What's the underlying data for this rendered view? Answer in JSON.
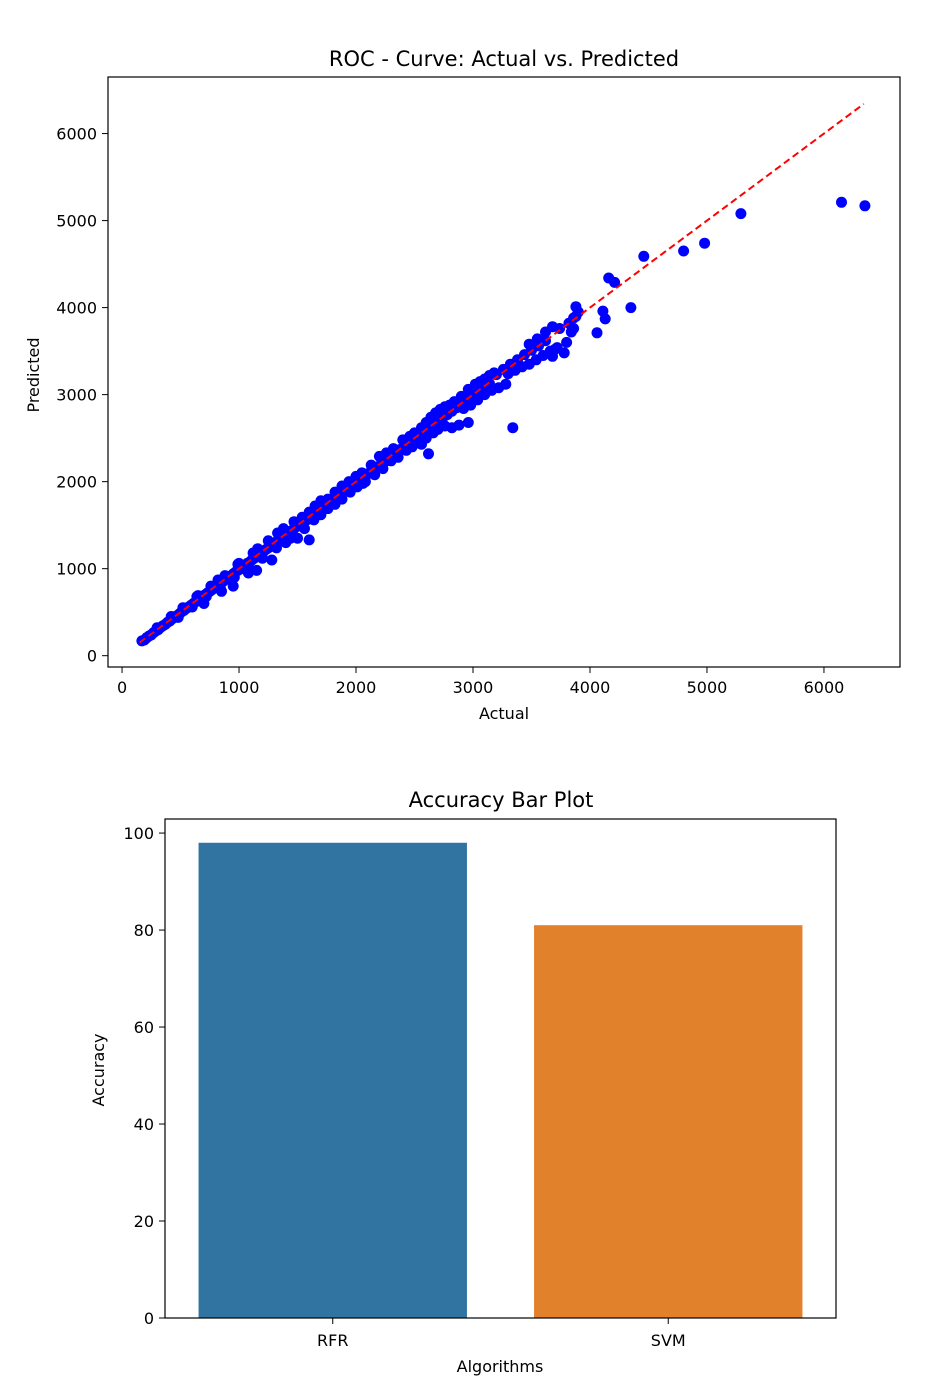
{
  "chart_data": [
    {
      "type": "scatter",
      "title": "ROC - Curve: Actual vs. Predicted",
      "xlabel": "Actual",
      "ylabel": "Predicted",
      "xlim": [
        -120,
        6650
      ],
      "ylim": [
        -130,
        6650
      ],
      "xticks": [
        "0",
        "1000",
        "2000",
        "3000",
        "4000",
        "5000",
        "6000"
      ],
      "yticks": [
        "0",
        "1000",
        "2000",
        "3000",
        "4000",
        "5000",
        "6000"
      ],
      "reference_line": {
        "from": [
          150,
          150
        ],
        "to": [
          6340,
          6340
        ],
        "color": "#ff0000",
        "style": "dashed"
      },
      "point_color": "#0000ff",
      "points": [
        [
          170,
          170
        ],
        [
          190,
          180
        ],
        [
          210,
          205
        ],
        [
          230,
          225
        ],
        [
          250,
          240
        ],
        [
          270,
          265
        ],
        [
          290,
          285
        ],
        [
          310,
          300
        ],
        [
          330,
          325
        ],
        [
          350,
          345
        ],
        [
          370,
          360
        ],
        [
          390,
          385
        ],
        [
          410,
          400
        ],
        [
          430,
          425
        ],
        [
          450,
          440
        ],
        [
          470,
          460
        ],
        [
          490,
          480
        ],
        [
          510,
          505
        ],
        [
          530,
          520
        ],
        [
          550,
          545
        ],
        [
          570,
          560
        ],
        [
          590,
          580
        ],
        [
          610,
          600
        ],
        [
          630,
          620
        ],
        [
          650,
          640
        ],
        [
          670,
          660
        ],
        [
          690,
          680
        ],
        [
          710,
          700
        ],
        [
          730,
          720
        ],
        [
          750,
          740
        ],
        [
          770,
          760
        ],
        [
          790,
          780
        ],
        [
          810,
          800
        ],
        [
          830,
          815
        ],
        [
          850,
          840
        ],
        [
          870,
          860
        ],
        [
          890,
          880
        ],
        [
          910,
          900
        ],
        [
          930,
          915
        ],
        [
          950,
          940
        ],
        [
          970,
          960
        ],
        [
          990,
          980
        ],
        [
          1010,
          995
        ],
        [
          1030,
          1020
        ],
        [
          1050,
          1040
        ],
        [
          1070,
          1060
        ],
        [
          1090,
          1075
        ],
        [
          1110,
          1100
        ],
        [
          1130,
          1120
        ],
        [
          1150,
          1140
        ],
        [
          1170,
          1160
        ],
        [
          1190,
          1175
        ],
        [
          1210,
          1200
        ],
        [
          1230,
          1220
        ],
        [
          1250,
          1240
        ],
        [
          1270,
          1255
        ],
        [
          1290,
          1280
        ],
        [
          1310,
          1300
        ],
        [
          1330,
          1320
        ],
        [
          1350,
          1340
        ],
        [
          1370,
          1355
        ],
        [
          1390,
          1380
        ],
        [
          1410,
          1400
        ],
        [
          1430,
          1420
        ],
        [
          1450,
          1435
        ],
        [
          1470,
          1460
        ],
        [
          1490,
          1480
        ],
        [
          1510,
          1500
        ],
        [
          1530,
          1515
        ],
        [
          1550,
          1540
        ],
        [
          300,
          320
        ],
        [
          420,
          450
        ],
        [
          520,
          550
        ],
        [
          640,
          680
        ],
        [
          760,
          800
        ],
        [
          880,
          920
        ],
        [
          1000,
          1060
        ],
        [
          1120,
          1180
        ],
        [
          1250,
          1320
        ],
        [
          1380,
          1460
        ],
        [
          480,
          440
        ],
        [
          600,
          560
        ],
        [
          720,
          680
        ],
        [
          840,
          780
        ],
        [
          960,
          900
        ],
        [
          1080,
          1010
        ],
        [
          1200,
          1120
        ],
        [
          1320,
          1240
        ],
        [
          1440,
          1350
        ],
        [
          1560,
          1460
        ],
        [
          650,
          690
        ],
        [
          820,
          870
        ],
        [
          990,
          1050
        ],
        [
          1160,
          1230
        ],
        [
          1330,
          1410
        ],
        [
          1470,
          1540
        ],
        [
          1540,
          1590
        ],
        [
          700,
          600
        ],
        [
          850,
          740
        ],
        [
          950,
          800
        ],
        [
          1080,
          950
        ],
        [
          1150,
          980
        ],
        [
          1280,
          1100
        ],
        [
          1400,
          1300
        ],
        [
          1500,
          1350
        ],
        [
          1600,
          1330
        ],
        [
          1460,
          1380
        ],
        [
          1580,
          1560
        ],
        [
          1620,
          1610
        ],
        [
          1660,
          1650
        ],
        [
          1700,
          1690
        ],
        [
          1740,
          1730
        ],
        [
          1780,
          1770
        ],
        [
          1820,
          1810
        ],
        [
          1860,
          1850
        ],
        [
          1900,
          1890
        ],
        [
          1940,
          1930
        ],
        [
          1600,
          1650
        ],
        [
          1650,
          1720
        ],
        [
          1700,
          1780
        ],
        [
          1760,
          1800
        ],
        [
          1820,
          1880
        ],
        [
          1880,
          1950
        ],
        [
          1940,
          2000
        ],
        [
          2000,
          2060
        ],
        [
          1640,
          1560
        ],
        [
          1700,
          1620
        ],
        [
          1760,
          1690
        ],
        [
          1820,
          1740
        ],
        [
          1880,
          1800
        ],
        [
          1950,
          1880
        ],
        [
          2010,
          1940
        ],
        [
          2060,
          1980
        ],
        [
          1980,
          1970
        ],
        [
          2020,
          2010
        ],
        [
          2060,
          2050
        ],
        [
          2100,
          2090
        ],
        [
          2140,
          2130
        ],
        [
          2180,
          2170
        ],
        [
          2220,
          2210
        ],
        [
          2260,
          2240
        ],
        [
          2300,
          2290
        ],
        [
          2340,
          2330
        ],
        [
          2050,
          2100
        ],
        [
          2130,
          2190
        ],
        [
          2200,
          2290
        ],
        [
          2260,
          2330
        ],
        [
          2320,
          2380
        ],
        [
          2400,
          2480
        ],
        [
          2460,
          2520
        ],
        [
          2080,
          2000
        ],
        [
          2160,
          2080
        ],
        [
          2230,
          2150
        ],
        [
          2300,
          2240
        ],
        [
          2360,
          2280
        ],
        [
          2430,
          2360
        ],
        [
          2480,
          2400
        ],
        [
          2540,
          2450
        ],
        [
          2620,
          2320
        ],
        [
          2380,
          2370
        ],
        [
          2420,
          2410
        ],
        [
          2460,
          2450
        ],
        [
          2500,
          2490
        ],
        [
          2540,
          2530
        ],
        [
          2580,
          2570
        ],
        [
          2620,
          2610
        ],
        [
          2660,
          2650
        ],
        [
          2700,
          2690
        ],
        [
          2740,
          2730
        ],
        [
          2500,
          2560
        ],
        [
          2560,
          2620
        ],
        [
          2600,
          2680
        ],
        [
          2640,
          2740
        ],
        [
          2680,
          2790
        ],
        [
          2720,
          2830
        ],
        [
          2760,
          2860
        ],
        [
          2800,
          2880
        ],
        [
          2840,
          2920
        ],
        [
          2560,
          2430
        ],
        [
          2600,
          2500
        ],
        [
          2660,
          2560
        ],
        [
          2700,
          2600
        ],
        [
          2760,
          2640
        ],
        [
          2820,
          2620
        ],
        [
          2880,
          2650
        ],
        [
          2960,
          2680
        ],
        [
          2780,
          2770
        ],
        [
          2820,
          2810
        ],
        [
          2860,
          2850
        ],
        [
          2900,
          2890
        ],
        [
          2940,
          2930
        ],
        [
          2980,
          2970
        ],
        [
          3020,
          3010
        ],
        [
          3060,
          3050
        ],
        [
          3100,
          3090
        ],
        [
          3140,
          3130
        ],
        [
          2900,
          2980
        ],
        [
          2960,
          3060
        ],
        [
          3020,
          3120
        ],
        [
          3060,
          3150
        ],
        [
          3100,
          3180
        ],
        [
          3140,
          3220
        ],
        [
          3180,
          3250
        ],
        [
          2920,
          2840
        ],
        [
          2980,
          2880
        ],
        [
          3040,
          2940
        ],
        [
          3100,
          3000
        ],
        [
          3160,
          3050
        ],
        [
          3220,
          3080
        ],
        [
          3280,
          3120
        ],
        [
          3200,
          3230
        ],
        [
          3260,
          3290
        ],
        [
          3320,
          3350
        ],
        [
          3380,
          3400
        ],
        [
          3440,
          3460
        ],
        [
          3500,
          3510
        ],
        [
          3560,
          3560
        ],
        [
          3620,
          3620
        ],
        [
          3300,
          3240
        ],
        [
          3360,
          3280
        ],
        [
          3420,
          3320
        ],
        [
          3480,
          3350
        ],
        [
          3540,
          3400
        ],
        [
          3600,
          3450
        ],
        [
          3660,
          3500
        ],
        [
          3700,
          3520
        ],
        [
          3780,
          3480
        ],
        [
          3680,
          3440
        ],
        [
          3480,
          3580
        ],
        [
          3550,
          3640
        ],
        [
          3620,
          3720
        ],
        [
          3680,
          3780
        ],
        [
          3740,
          3760
        ],
        [
          3820,
          3820
        ],
        [
          3860,
          3880
        ],
        [
          3880,
          3900
        ],
        [
          3340,
          2620
        ],
        [
          3840,
          3720
        ],
        [
          3860,
          3760
        ],
        [
          3880,
          4010
        ],
        [
          3900,
          3950
        ],
        [
          3800,
          3600
        ],
        [
          3720,
          3540
        ],
        [
          4060,
          3710
        ],
        [
          4110,
          3960
        ],
        [
          4130,
          3870
        ],
        [
          4160,
          4340
        ],
        [
          4210,
          4290
        ],
        [
          4350,
          4000
        ],
        [
          4460,
          4590
        ],
        [
          4800,
          4650
        ],
        [
          4980,
          4740
        ],
        [
          5290,
          5080
        ],
        [
          6150,
          5210
        ],
        [
          6350,
          5170
        ]
      ]
    },
    {
      "type": "bar",
      "title": "Accuracy Bar Plot",
      "xlabel": "Algorithms",
      "ylabel": "Accuracy",
      "categories": [
        "RFR",
        "SVM"
      ],
      "values": [
        98,
        81
      ],
      "colors": [
        "#3274a1",
        "#e1812c"
      ],
      "ylim": [
        0,
        102.9
      ],
      "yticks": [
        "0",
        "20",
        "40",
        "60",
        "80",
        "100"
      ]
    }
  ]
}
